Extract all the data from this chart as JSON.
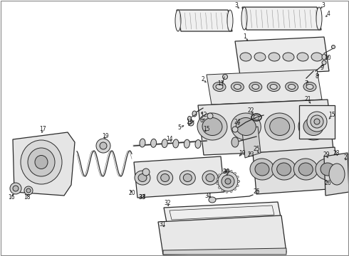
{
  "background_color": "#ffffff",
  "line_color": "#2a2a2a",
  "figsize": [
    4.9,
    3.6
  ],
  "dpi": 100,
  "border_color": "#888888"
}
